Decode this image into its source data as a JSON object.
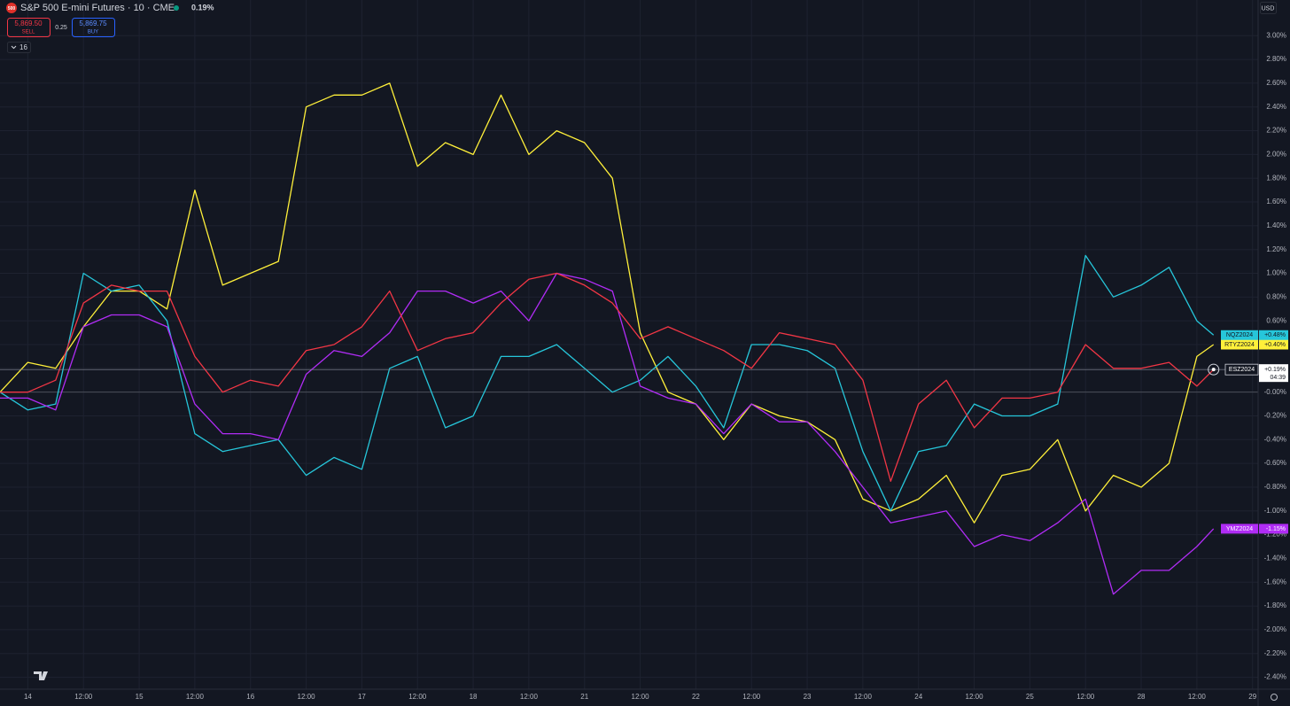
{
  "header": {
    "icon_text": "500",
    "symbol": "S&P 500 E-mini Futures · 10 · CME",
    "change": "0.19%",
    "sell_price": "5,869.50",
    "sell": "SELL",
    "spread": "0.25",
    "buy_price": "5,869.75",
    "buy": "BUY",
    "indicators": "16",
    "currency": "USD"
  },
  "chart_data": {
    "type": "line",
    "x": [
      -0.5,
      0,
      0.5,
      1,
      1.5,
      2,
      2.5,
      3,
      3.5,
      4,
      4.5,
      5,
      5.5,
      6,
      6.5,
      7,
      7.5,
      8,
      8.5,
      9,
      9.5,
      10,
      10.5,
      11,
      11.5,
      12,
      12.5,
      13,
      13.5,
      14,
      14.5,
      15,
      15.5,
      16,
      16.5,
      17,
      17.5,
      18,
      18.5,
      19,
      19.5,
      20,
      20.5,
      21,
      21.3
    ],
    "xlim": [
      -0.5,
      22.1
    ],
    "xticks": [
      {
        "value": 0,
        "label": "14"
      },
      {
        "value": 1,
        "label": "12:00"
      },
      {
        "value": 2,
        "label": "15"
      },
      {
        "value": 3,
        "label": "12:00"
      },
      {
        "value": 4,
        "label": "16"
      },
      {
        "value": 5,
        "label": "12:00"
      },
      {
        "value": 6,
        "label": "17"
      },
      {
        "value": 7,
        "label": "12:00"
      },
      {
        "value": 8,
        "label": "18"
      },
      {
        "value": 9,
        "label": "12:00"
      },
      {
        "value": 10,
        "label": "21"
      },
      {
        "value": 11,
        "label": "12:00"
      },
      {
        "value": 12,
        "label": "22"
      },
      {
        "value": 13,
        "label": "12:00"
      },
      {
        "value": 14,
        "label": "23"
      },
      {
        "value": 15,
        "label": "12:00"
      },
      {
        "value": 16,
        "label": "24"
      },
      {
        "value": 17,
        "label": "12:00"
      },
      {
        "value": 18,
        "label": "25"
      },
      {
        "value": 19,
        "label": "12:00"
      },
      {
        "value": 20,
        "label": "28"
      },
      {
        "value": 21,
        "label": "12:00"
      },
      {
        "value": 22,
        "label": "29"
      }
    ],
    "ylim": [
      -2.5,
      3.3
    ],
    "yticks": [
      {
        "value": 3,
        "label": "3.00%"
      },
      {
        "value": 2.8,
        "label": "2.80%"
      },
      {
        "value": 2.6,
        "label": "2.60%"
      },
      {
        "value": 2.4,
        "label": "2.40%"
      },
      {
        "value": 2.2,
        "label": "2.20%"
      },
      {
        "value": 2,
        "label": "2.00%"
      },
      {
        "value": 1.8,
        "label": "1.80%"
      },
      {
        "value": 1.6,
        "label": "1.60%"
      },
      {
        "value": 1.4,
        "label": "1.40%"
      },
      {
        "value": 1.2,
        "label": "1.20%"
      },
      {
        "value": 1,
        "label": "1.00%"
      },
      {
        "value": 0.8,
        "label": "0.80%"
      },
      {
        "value": 0.6,
        "label": "0.60%"
      },
      {
        "value": 0.4,
        "label": "0.40%"
      },
      {
        "value": 0.2,
        "label": "0.20%"
      },
      {
        "value": 0,
        "label": "-0.00%"
      },
      {
        "value": -0.2,
        "label": "-0.20%"
      },
      {
        "value": -0.4,
        "label": "-0.40%"
      },
      {
        "value": -0.6,
        "label": "-0.60%"
      },
      {
        "value": -0.8,
        "label": "-0.80%"
      },
      {
        "value": -1,
        "label": "-1.00%"
      },
      {
        "value": -1.2,
        "label": "-1.20%"
      },
      {
        "value": -1.4,
        "label": "-1.40%"
      },
      {
        "value": -1.6,
        "label": "-1.60%"
      },
      {
        "value": -1.8,
        "label": "-1.80%"
      },
      {
        "value": -2,
        "label": "-2.00%"
      },
      {
        "value": -2.2,
        "label": "-2.20%"
      },
      {
        "value": -2.4,
        "label": "-2.40%"
      }
    ],
    "grid": true,
    "series": [
      {
        "name": "RTYZ2024",
        "color": "#fff03a",
        "last_value_label": "+0.40%",
        "values": [
          0,
          0.25,
          0.2,
          0.55,
          0.85,
          0.85,
          0.7,
          1.7,
          0.9,
          1.0,
          1.1,
          2.4,
          2.5,
          2.5,
          2.6,
          1.9,
          2.1,
          2.0,
          2.5,
          2.0,
          2.2,
          2.1,
          1.8,
          0.5,
          0.0,
          -0.1,
          -0.4,
          -0.1,
          -0.2,
          -0.25,
          -0.4,
          -0.9,
          -1.0,
          -0.9,
          -0.7,
          -1.1,
          -0.7,
          -0.65,
          -0.4,
          -1.0,
          -0.7,
          -0.8,
          -0.6,
          0.3,
          0.4
        ]
      },
      {
        "name": "NQZ2024",
        "color": "#26c6da",
        "last_value_label": "+0.48%",
        "values": [
          0,
          -0.15,
          -0.1,
          1.0,
          0.85,
          0.9,
          0.6,
          -0.35,
          -0.5,
          -0.45,
          -0.4,
          -0.7,
          -0.55,
          -0.65,
          0.2,
          0.3,
          -0.3,
          -0.2,
          0.3,
          0.3,
          0.4,
          0.2,
          0.0,
          0.1,
          0.3,
          0.05,
          -0.3,
          0.4,
          0.4,
          0.35,
          0.2,
          -0.5,
          -1.0,
          -0.5,
          -0.45,
          -0.1,
          -0.2,
          -0.2,
          -0.1,
          1.15,
          0.8,
          0.9,
          1.05,
          0.6,
          0.48
        ]
      },
      {
        "name": "YMZ2024",
        "color": "#b02cf5",
        "last_value_label": "-1.15%",
        "values": [
          -0.05,
          -0.05,
          -0.15,
          0.55,
          0.65,
          0.65,
          0.55,
          -0.1,
          -0.35,
          -0.35,
          -0.4,
          0.15,
          0.35,
          0.3,
          0.5,
          0.85,
          0.85,
          0.75,
          0.85,
          0.6,
          1.0,
          0.95,
          0.85,
          0.05,
          -0.05,
          -0.1,
          -0.35,
          -0.1,
          -0.25,
          -0.25,
          -0.5,
          -0.8,
          -1.1,
          -1.05,
          -1.0,
          -1.3,
          -1.2,
          -1.25,
          -1.1,
          -0.9,
          -1.7,
          -1.5,
          -1.5,
          -1.3,
          -1.15
        ]
      },
      {
        "name": "ESZ2024",
        "color": "#f23645",
        "last_value_label": "+0.19%",
        "countdown": "04:39",
        "main": true,
        "values": [
          0,
          0.0,
          0.1,
          0.75,
          0.9,
          0.85,
          0.85,
          0.3,
          0.0,
          0.1,
          0.05,
          0.35,
          0.4,
          0.55,
          0.85,
          0.35,
          0.45,
          0.5,
          0.75,
          0.95,
          1.0,
          0.9,
          0.75,
          0.45,
          0.55,
          0.45,
          0.35,
          0.2,
          0.5,
          0.45,
          0.4,
          0.1,
          -0.75,
          -0.1,
          0.1,
          -0.3,
          -0.05,
          -0.05,
          0.0,
          0.4,
          0.2,
          0.2,
          0.25,
          0.05,
          0.19
        ]
      }
    ]
  }
}
